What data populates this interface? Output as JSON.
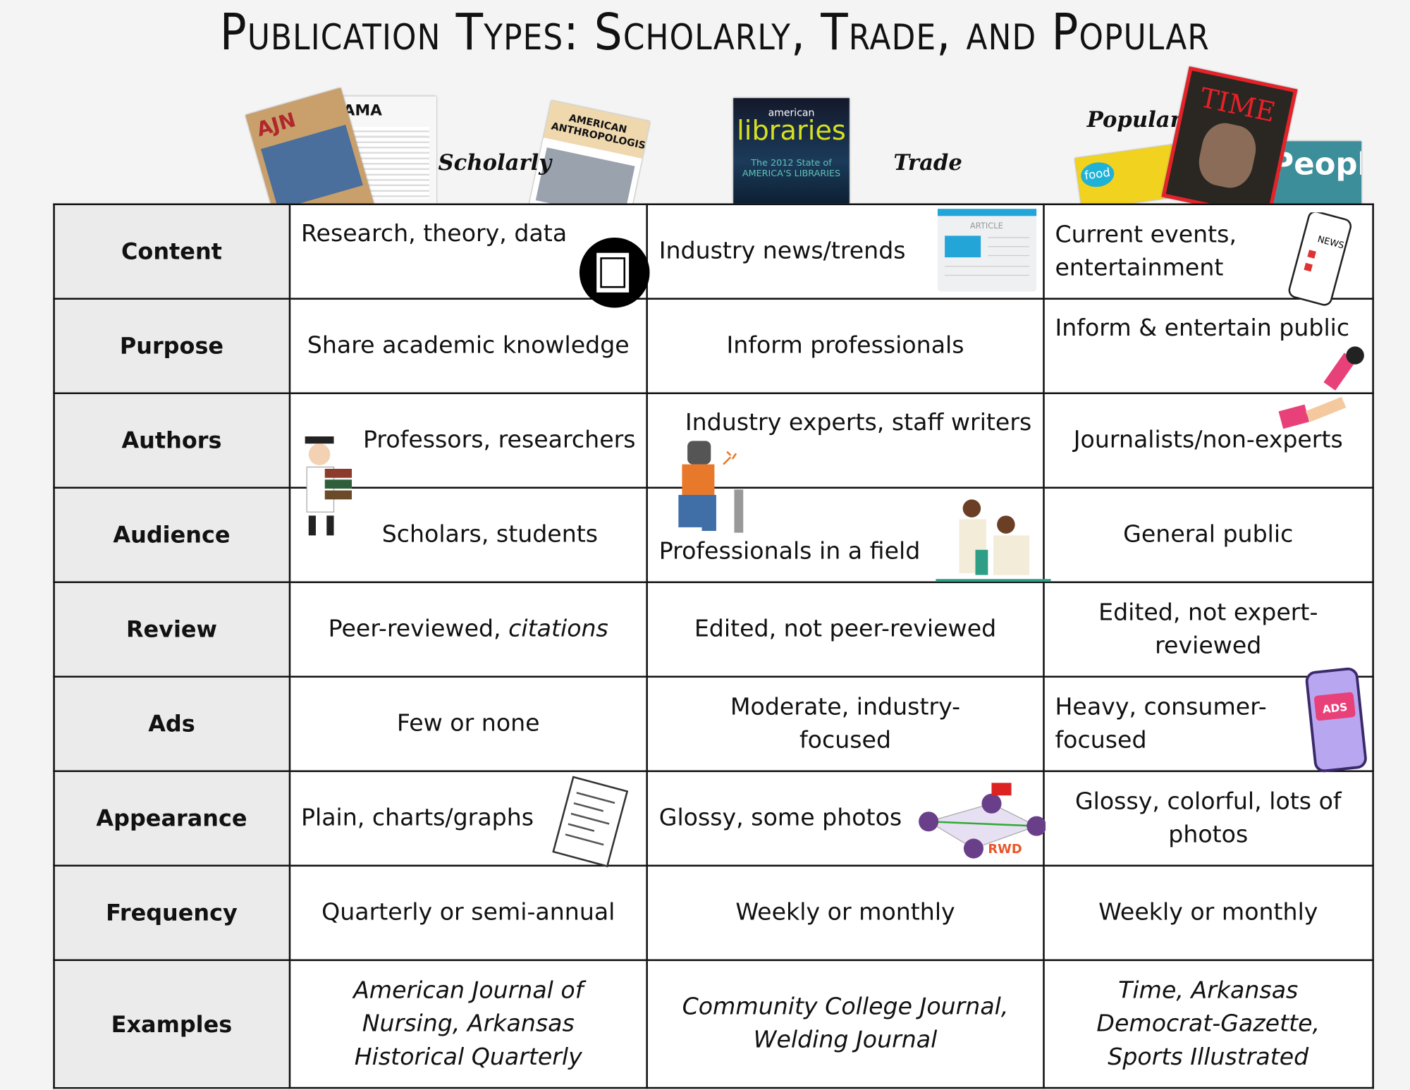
{
  "title": "Publication Types: Scholarly, Trade, and Popular",
  "column_labels": {
    "scholarly": "Scholarly",
    "trade": "Trade",
    "popular": "Popular"
  },
  "covers": {
    "ajn": "AJN",
    "jama": "JAMA",
    "anthro": "AMERICAN ANTHROPOLOGIST",
    "libraries_top": "american",
    "libraries": "libraries",
    "libraries_sub": "The 2012 State of AMERICA'S LIBRARIES",
    "time": "TIME",
    "people": "People",
    "food": "food"
  },
  "rows": [
    {
      "header": "Content",
      "scholarly": "Research, theory, data",
      "trade": "Industry news/trends",
      "popular": "Current events, entertainment"
    },
    {
      "header": "Purpose",
      "scholarly": "Share academic knowledge",
      "trade": "Inform professionals",
      "popular": "Inform & entertain public"
    },
    {
      "header": "Authors",
      "scholarly": "Professors, researchers",
      "trade": "Industry experts, staff writers",
      "popular": "Journalists/non-experts"
    },
    {
      "header": "Audience",
      "scholarly": "Scholars, students",
      "trade": "Professionals in a field",
      "popular": "General public"
    },
    {
      "header": "Review",
      "scholarly": "Peer-reviewed, ",
      "scholarly_italic": "citations",
      "trade": "Edited, not peer-reviewed",
      "popular": "Edited, not expert-reviewed"
    },
    {
      "header": "Ads",
      "scholarly": "Few or none",
      "trade": "Moderate, industry-focused",
      "popular": "Heavy, consumer-focused"
    },
    {
      "header": "Appearance",
      "scholarly": "Plain, charts/graphs",
      "trade": "Glossy, some photos",
      "popular": "Glossy, colorful, lots of photos"
    },
    {
      "header": "Frequency",
      "scholarly": "Quarterly or semi-annual",
      "trade": "Weekly or monthly",
      "popular": "Weekly or monthly"
    },
    {
      "header": "Examples",
      "scholarly": "American Journal of Nursing, Arkansas Historical Quarterly",
      "trade": "Community College Journal, Welding Journal",
      "popular": "Time, Arkansas Democrat-Gazette, Sports Illustrated"
    }
  ],
  "icon_text": {
    "article": "ARTICLE",
    "news": "NEWS",
    "ads": "ADS",
    "rwd": "RWD"
  }
}
